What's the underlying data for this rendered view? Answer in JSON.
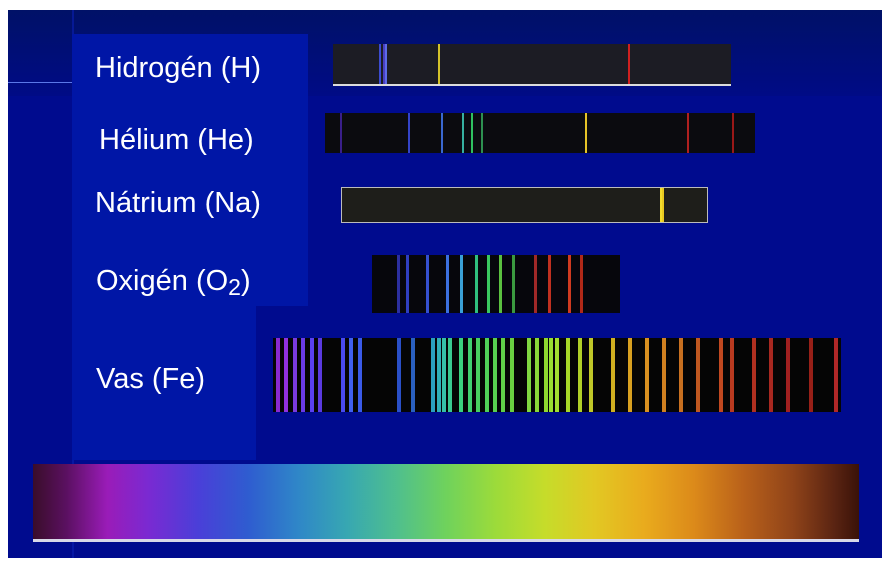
{
  "elements": [
    {
      "key": "hydrogen",
      "label_pre": "Hidrogén  (H)",
      "sub": ""
    },
    {
      "key": "helium",
      "label_pre": "Hélium (He)",
      "sub": ""
    },
    {
      "key": "sodium",
      "label_pre": "Nátrium (Na)",
      "sub": ""
    },
    {
      "key": "oxygen",
      "label_pre": "Oxigén (O",
      "sub": "2",
      "label_post": ")"
    },
    {
      "key": "iron",
      "label_pre": "Vas (Fe)",
      "sub": ""
    }
  ],
  "spectra": {
    "hydrogen": {
      "background": "#1c1c24",
      "lines": [
        {
          "pos": 0.116,
          "color": "#3b4bd0"
        },
        {
          "pos": 0.125,
          "color": "#4a3fc0"
        },
        {
          "pos": 0.132,
          "color": "#5d6ae8"
        },
        {
          "pos": 0.266,
          "color": "#d4c22a"
        },
        {
          "pos": 0.745,
          "color": "#d02020"
        }
      ]
    },
    "helium": {
      "background": "#0b0b0f",
      "lines": [
        {
          "pos": 0.035,
          "color": "#3a1f8a"
        },
        {
          "pos": 0.195,
          "color": "#3444c8"
        },
        {
          "pos": 0.27,
          "color": "#3a68d0"
        },
        {
          "pos": 0.32,
          "color": "#36b0a0"
        },
        {
          "pos": 0.342,
          "color": "#2fc060"
        },
        {
          "pos": 0.364,
          "color": "#2d9050"
        },
        {
          "pos": 0.607,
          "color": "#e6c428"
        },
        {
          "pos": 0.845,
          "color": "#b02020"
        },
        {
          "pos": 0.95,
          "color": "#9a1818"
        }
      ]
    },
    "sodium": {
      "background": "#1e1e1a",
      "lines": [
        {
          "pos": 0.876,
          "color": "#f2dc2c"
        },
        {
          "pos": 0.882,
          "color": "#e8c820"
        }
      ]
    },
    "oxygen": {
      "background": "#06060c",
      "lines": [
        {
          "pos": 0.1,
          "color": "#2c2fa0"
        },
        {
          "pos": 0.14,
          "color": "#2f3fc0"
        },
        {
          "pos": 0.22,
          "color": "#3550d0"
        },
        {
          "pos": 0.3,
          "color": "#3c70e0"
        },
        {
          "pos": 0.36,
          "color": "#3aa0d8"
        },
        {
          "pos": 0.42,
          "color": "#2fbf80"
        },
        {
          "pos": 0.47,
          "color": "#3ac860"
        },
        {
          "pos": 0.52,
          "color": "#5ac040"
        },
        {
          "pos": 0.57,
          "color": "#3a9a40"
        },
        {
          "pos": 0.66,
          "color": "#a02828"
        },
        {
          "pos": 0.72,
          "color": "#c03020"
        },
        {
          "pos": 0.8,
          "color": "#d03a20"
        },
        {
          "pos": 0.85,
          "color": "#b02818"
        }
      ]
    },
    "iron": {
      "background": "#050505",
      "lines": [
        {
          "pos": 0.005,
          "color": "#8a2ad0"
        },
        {
          "pos": 0.02,
          "color": "#9030e0"
        },
        {
          "pos": 0.035,
          "color": "#7a3ae0"
        },
        {
          "pos": 0.05,
          "color": "#6a3ae8"
        },
        {
          "pos": 0.065,
          "color": "#5a40f0"
        },
        {
          "pos": 0.08,
          "color": "#5a3ae0"
        },
        {
          "pos": 0.12,
          "color": "#4a4af0"
        },
        {
          "pos": 0.135,
          "color": "#4060f0"
        },
        {
          "pos": 0.15,
          "color": "#3a5ae8"
        },
        {
          "pos": 0.22,
          "color": "#2a50c8"
        },
        {
          "pos": 0.245,
          "color": "#2a60c0"
        },
        {
          "pos": 0.28,
          "color": "#2aa0c0"
        },
        {
          "pos": 0.29,
          "color": "#30b0b8"
        },
        {
          "pos": 0.3,
          "color": "#36c0a8"
        },
        {
          "pos": 0.31,
          "color": "#3ac890"
        },
        {
          "pos": 0.33,
          "color": "#3ad080"
        },
        {
          "pos": 0.345,
          "color": "#40d070"
        },
        {
          "pos": 0.36,
          "color": "#48d060"
        },
        {
          "pos": 0.375,
          "color": "#50d058"
        },
        {
          "pos": 0.39,
          "color": "#58d050"
        },
        {
          "pos": 0.405,
          "color": "#60d048"
        },
        {
          "pos": 0.42,
          "color": "#6ad040"
        },
        {
          "pos": 0.45,
          "color": "#80d840"
        },
        {
          "pos": 0.465,
          "color": "#88d838"
        },
        {
          "pos": 0.48,
          "color": "#90d830"
        },
        {
          "pos": 0.49,
          "color": "#98e030"
        },
        {
          "pos": 0.5,
          "color": "#a0e030"
        },
        {
          "pos": 0.52,
          "color": "#a8d828"
        },
        {
          "pos": 0.54,
          "color": "#b0d028"
        },
        {
          "pos": 0.56,
          "color": "#c0c828"
        },
        {
          "pos": 0.6,
          "color": "#d0b020"
        },
        {
          "pos": 0.63,
          "color": "#d8a020"
        },
        {
          "pos": 0.66,
          "color": "#d89020"
        },
        {
          "pos": 0.69,
          "color": "#d08020"
        },
        {
          "pos": 0.72,
          "color": "#c87020"
        },
        {
          "pos": 0.75,
          "color": "#c05820"
        },
        {
          "pos": 0.79,
          "color": "#c04820"
        },
        {
          "pos": 0.81,
          "color": "#b83a20"
        },
        {
          "pos": 0.85,
          "color": "#b03020"
        },
        {
          "pos": 0.88,
          "color": "#a82820"
        },
        {
          "pos": 0.91,
          "color": "#a02020"
        },
        {
          "pos": 0.95,
          "color": "#982018"
        },
        {
          "pos": 0.995,
          "color": "#b02828"
        }
      ]
    }
  },
  "colors": {
    "slide_background": "#000b8e",
    "label_panel": "#0016a6",
    "label_text": "#ffffff"
  }
}
